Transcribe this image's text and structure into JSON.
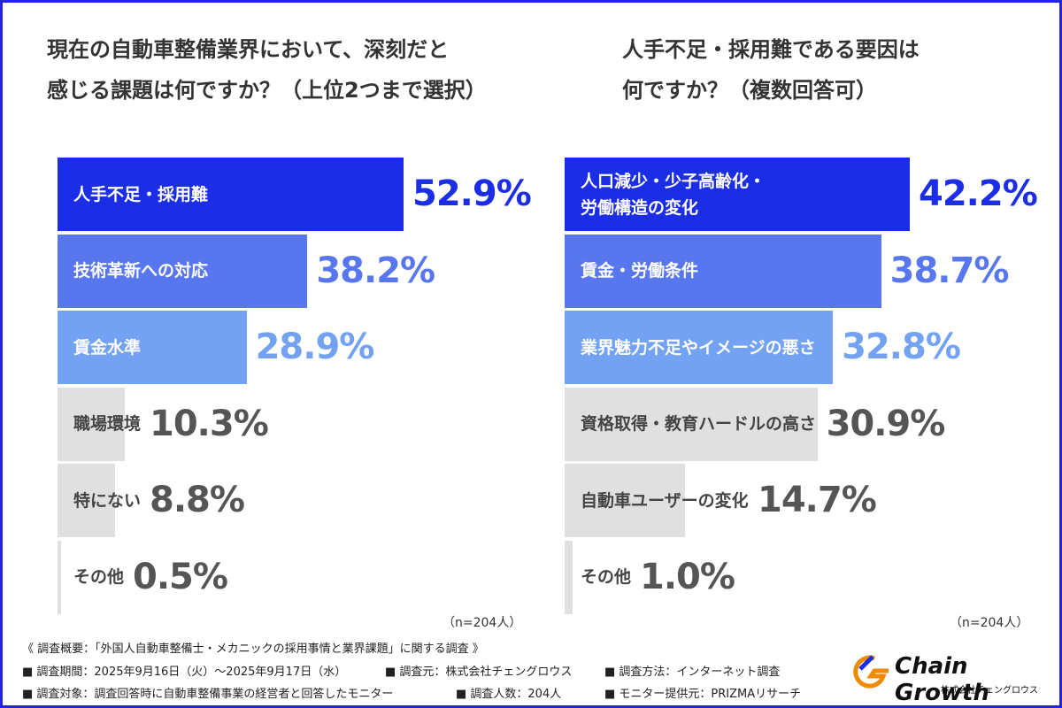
{
  "chart_data": [
    {
      "type": "bar",
      "title": "現在の自動車整備業界において、深刻だと\n感じる課題は何ですか？（上位2つまで選択）",
      "categories": [
        "人手不足・採用難",
        "技術革新への対応",
        "賃金水準",
        "職場環境",
        "特にない",
        "その他"
      ],
      "values": [
        52.9,
        38.2,
        28.9,
        10.3,
        8.8,
        0.5
      ],
      "value_labels": [
        "52.9%",
        "38.2%",
        "28.9%",
        "10.3%",
        "8.8%",
        "0.5%"
      ],
      "colors": [
        "#1b2ee6",
        "#5877ee",
        "#74a2f2",
        "#e0e0e0",
        "#e0e0e0",
        "#e0e0e0"
      ],
      "value_label_colors": [
        "#1b2ee6",
        "#5877ee",
        "#74a2f2",
        "#555555",
        "#555555",
        "#555555"
      ],
      "category_label_colors": [
        "#ffffff",
        "#ffffff",
        "#ffffff",
        "#444444",
        "#444444",
        "#444444"
      ],
      "note": "（n=204人）"
    },
    {
      "type": "bar",
      "title": "人手不足・採用難である要因は\n何ですか？（複数回答可）",
      "categories": [
        "人口減少・少子高齢化・\n労働構造の変化",
        "賃金・労働条件",
        "業界魅力不足やイメージの悪さ",
        "資格取得・教育ハードルの高さ",
        "自動車ユーザーの変化",
        "その他"
      ],
      "values": [
        42.2,
        38.7,
        32.8,
        30.9,
        14.7,
        1.0
      ],
      "value_labels": [
        "42.2%",
        "38.7%",
        "32.8%",
        "30.9%",
        "14.7%",
        "1.0%"
      ],
      "colors": [
        "#1b2ee6",
        "#5877ee",
        "#74a2f2",
        "#e0e0e0",
        "#e0e0e0",
        "#e0e0e0"
      ],
      "value_label_colors": [
        "#1b2ee6",
        "#5877ee",
        "#74a2f2",
        "#555555",
        "#555555",
        "#555555"
      ],
      "category_label_colors": [
        "#ffffff",
        "#ffffff",
        "#ffffff",
        "#444444",
        "#444444",
        "#444444"
      ],
      "note": "（n=204人）"
    }
  ],
  "footer": {
    "heading": "《 調査概要：「外国人自動車整備士・メカニックの採用事情と業界課題」に関する調査 》",
    "rows": [
      [
        "■ 調査期間：2025年9月16日（火）～2025年9月17日（水）",
        "■ 調査元：株式会社チェングロウス",
        "■ 調査方法：インターネット調査"
      ],
      [
        "■ 調査対象：調査回答時に自動車整備事業の経営者と回答したモニター",
        "■ 調査人数：204人",
        "■ モニター提供元：PRIZMAリサーチ"
      ]
    ]
  },
  "logo": {
    "name": "Chain Growth",
    "company": "株式会社チェングロウス"
  }
}
